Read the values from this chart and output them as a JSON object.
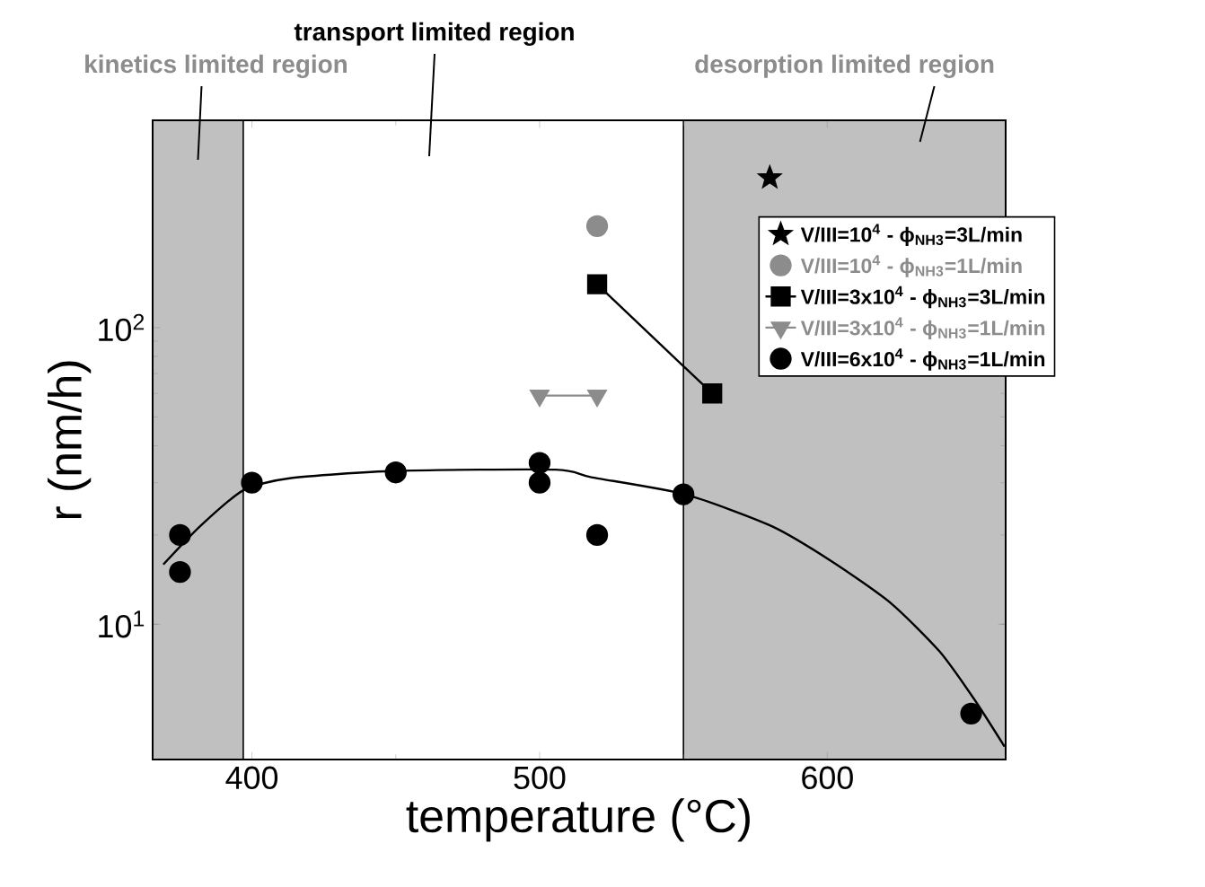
{
  "chart_data": {
    "type": "scatter",
    "xlabel": "temperature (°C)",
    "ylabel": "r (nm/h)",
    "xlim": [
      365.5,
      662
    ],
    "xticks": [
      400,
      500,
      600
    ],
    "ylim": [
      3.5,
      500
    ],
    "yticks": [
      {
        "value": 10,
        "label": "10$^{1}$"
      },
      {
        "value": 100,
        "label": "10$^{2}$"
      }
    ],
    "log": "y",
    "legend": "right",
    "grid": false,
    "bands": [
      {
        "axis": "x",
        "from": 365.5,
        "to": 397,
        "label": "kinetics limited region",
        "color": "#c0c0c0"
      },
      {
        "axis": "x",
        "from": 550,
        "to": 662,
        "label": "desorption limited region",
        "color": "#c0c0c0"
      }
    ],
    "annotations": [
      "transport limited region"
    ],
    "series": [
      {
        "name": "V/III=10$^{4}$ - ϕ$_{NH3}$=3L/min",
        "marker": "star",
        "color": "#000000",
        "x": [
          580
        ],
        "values": [
          320
        ]
      },
      {
        "name": "V/III=10$^{4}$ - ϕ$_{NH3}$=1L/min",
        "marker": "circle",
        "color": "#8c8c8c",
        "x": [
          520
        ],
        "values": [
          220
        ]
      },
      {
        "name": "V/III=3x10$^{4}$ - ϕ$_{NH3}$=3L/min",
        "type": "line",
        "marker": "square",
        "color": "#000000",
        "x": [
          520,
          560
        ],
        "values": [
          140,
          60
        ]
      },
      {
        "name": "V/III=3x10$^{4}$ - ϕ$_{NH3}$=1L/min",
        "type": "line",
        "marker": "triangle",
        "color": "#8c8c8c",
        "x": [
          500,
          520
        ],
        "values": [
          59,
          59
        ]
      },
      {
        "name": "V/III=6x10$^{4}$ - ϕ$_{NH3}$=1L/min",
        "marker": "circle",
        "color": "#000000",
        "x": [
          375,
          375,
          400,
          450,
          500,
          500,
          520,
          550,
          650
        ],
        "values": [
          20,
          15,
          30,
          32.5,
          35,
          30,
          20,
          27.4,
          5
        ]
      },
      {
        "type": "line",
        "marker": "none",
        "color": "#000000",
        "x": [
          369.2,
          382,
          397,
          413.6,
          450,
          505.6,
          518,
          550.6,
          580.7,
          601.5,
          622,
          639,
          651,
          661.6
        ],
        "values": [
          15.9,
          21.4,
          28.3,
          31.1,
          32.9,
          33.2,
          31.3,
          27.4,
          21.4,
          16.3,
          11.8,
          8.1,
          5.6,
          3.87
        ]
      }
    ]
  }
}
